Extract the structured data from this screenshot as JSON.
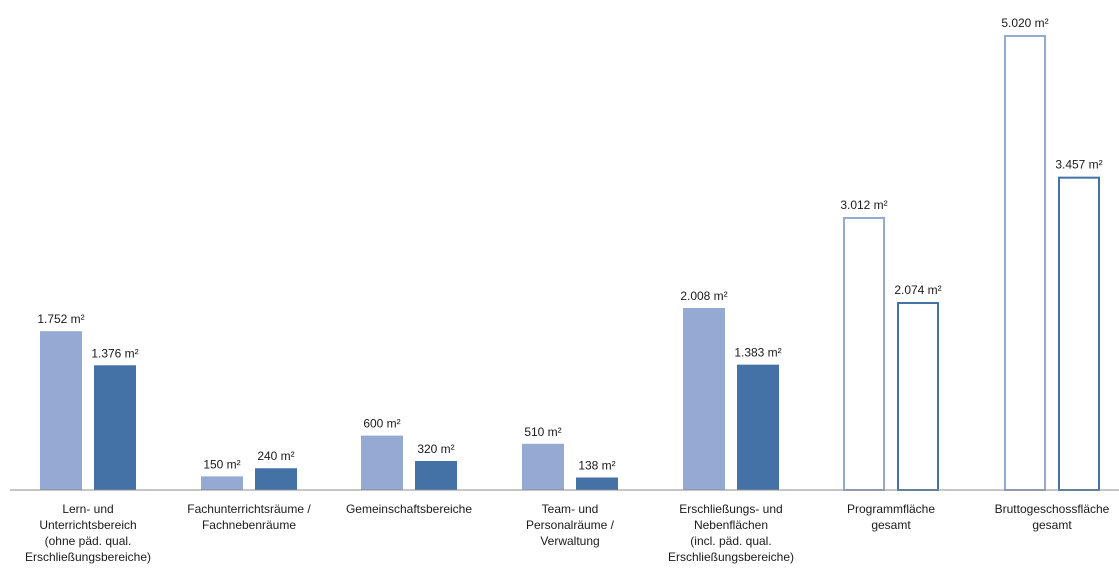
{
  "chart_data": {
    "type": "bar",
    "unit": "m²",
    "categories": [
      [
        "Lern- und",
        "Unterrichtsbereich",
        "(ohne päd. qual.",
        "Erschließungsbereiche)"
      ],
      [
        "Fachunterrichtsräume /",
        "Fachnebenräume"
      ],
      [
        "Gemeinschaftsbereiche"
      ],
      [
        "Team- und",
        "Personalräume /",
        "Verwaltung"
      ],
      [
        "Erschließungs- und",
        "Nebenflächen",
        "(incl. päd. qual.",
        "Erschließungsbereiche)"
      ],
      [
        "Programmfläche",
        "gesamt"
      ],
      [
        "Bruttogeschossfläche",
        "gesamt"
      ]
    ],
    "series": [
      {
        "values": [
          1752,
          150,
          600,
          510,
          2008,
          3012,
          5020
        ],
        "labels": [
          "1.752 m²",
          "150 m²",
          "600 m²",
          "510 m²",
          "2.008 m²",
          "3.012 m²",
          "5.020 m²"
        ],
        "color": "#95AAD3"
      },
      {
        "values": [
          1376,
          240,
          320,
          138,
          1383,
          2074,
          3457
        ],
        "labels": [
          "1.376 m²",
          "240 m²",
          "320 m²",
          "138 m²",
          "1.383 m²",
          "2.074 m²",
          "3.457 m²"
        ],
        "color": "#4472A6"
      }
    ],
    "outline_categories": [
      5,
      6
    ],
    "ylim": [
      0,
      5020
    ],
    "grid": false,
    "legend": "none"
  }
}
